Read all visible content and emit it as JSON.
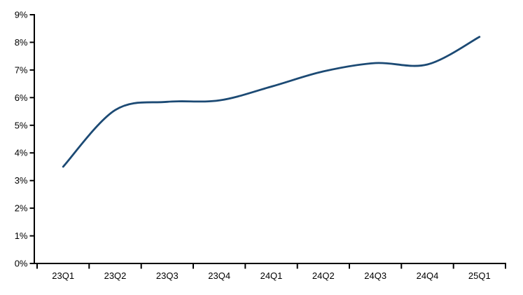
{
  "chart_data": {
    "type": "line",
    "title": "",
    "xlabel": "",
    "ylabel": "",
    "categories": [
      "23Q1",
      "23Q2",
      "23Q3",
      "23Q4",
      "24Q1",
      "24Q2",
      "24Q3",
      "24Q4",
      "25Q1"
    ],
    "values": [
      3.5,
      5.55,
      5.85,
      5.9,
      6.4,
      6.95,
      7.25,
      7.2,
      8.2
    ],
    "ylim": [
      0,
      9
    ],
    "ytick_interval": 1,
    "ytick_labels": [
      "0%",
      "1%",
      "2%",
      "3%",
      "4%",
      "5%",
      "6%",
      "7%",
      "8%",
      "9%"
    ],
    "grid": false,
    "legend": null,
    "smoothed": true,
    "line_color": "#1C4A74",
    "axis_color": "#000000",
    "background": "#ffffff"
  }
}
